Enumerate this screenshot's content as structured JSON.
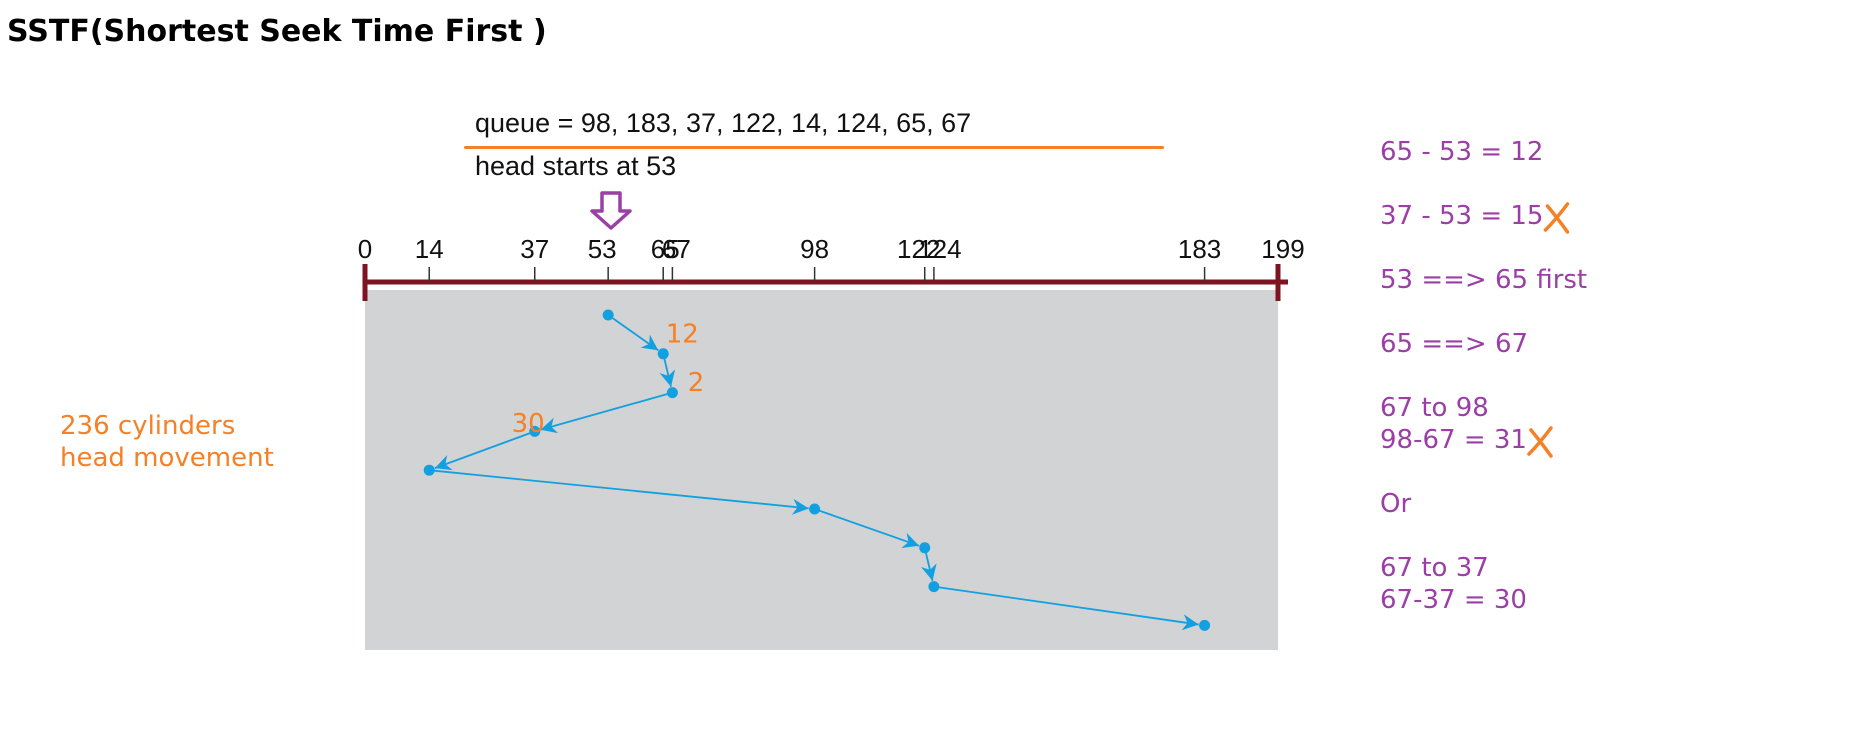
{
  "title": "SSTF(Shortest Seek Time First )",
  "queue_text": "queue = 98, 183, 37, 122, 14, 124, 65, 67",
  "head_text": "head starts at 53",
  "summary": {
    "line1": "236 cylinders",
    "line2": "head movement"
  },
  "axis": {
    "ticks": [
      {
        "label": "0",
        "value": 0
      },
      {
        "label": "14",
        "value": 14
      },
      {
        "label": "37",
        "value": 37
      },
      {
        "label": "53",
        "value": 53
      },
      {
        "label": "65",
        "value": 65
      },
      {
        "label": "67",
        "value": 67
      },
      {
        "label": "98",
        "value": 98
      },
      {
        "label": "122",
        "value": 122
      },
      {
        "label": "124",
        "value": 124
      },
      {
        "label": "183",
        "value": 183
      },
      {
        "label": "199",
        "value": 199
      }
    ],
    "min": 0,
    "max": 199
  },
  "path": [
    53,
    65,
    67,
    37,
    14,
    98,
    122,
    124,
    183
  ],
  "step_labels": [
    {
      "label": "12",
      "step": 0
    },
    {
      "label": "2",
      "step": 1
    },
    {
      "label": "30",
      "step": 2
    }
  ],
  "notes": [
    {
      "text": "65 - 53  = 12",
      "crossed": false
    },
    {
      "text": "37 - 53 = 15",
      "crossed": true
    },
    {
      "text": "53 ==> 65 first",
      "crossed": false
    },
    {
      "text": "65 ==> 67",
      "crossed": false
    },
    {
      "text": "67 to 98",
      "crossed": false
    },
    {
      "text": "98-67 = 31",
      "crossed": true
    },
    {
      "text": "Or",
      "crossed": false
    },
    {
      "text": "67 to 37",
      "crossed": false
    },
    {
      "text": "67-37 = 30",
      "crossed": false
    }
  ],
  "colors": {
    "axis": "#7b1522",
    "panel": "#d1d3d4",
    "path": "#12a0e0",
    "orange": "#f68026",
    "purple": "#9b3fa6",
    "text": "#111111"
  }
}
